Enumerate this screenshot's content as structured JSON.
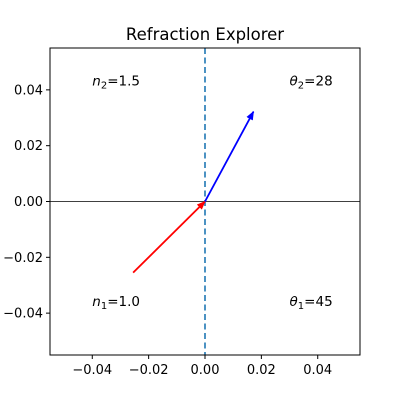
{
  "chart_data": {
    "type": "vector-diagram",
    "title": "Refraction Explorer",
    "xlim": [
      -0.055,
      0.055
    ],
    "ylim": [
      -0.055,
      0.055
    ],
    "xticks": [
      -0.04,
      -0.02,
      0.0,
      0.02,
      0.04
    ],
    "xtick_labels": [
      "−0.04",
      "−0.02",
      "0.00",
      "0.02",
      "0.04"
    ],
    "yticks": [
      -0.04,
      -0.02,
      0.0,
      0.02,
      0.04
    ],
    "ytick_labels": [
      "−0.04",
      "−0.02",
      "0.00",
      "0.02",
      "0.04"
    ],
    "grid": false,
    "reference_lines": [
      {
        "orientation": "horizontal",
        "value": 0.0,
        "style": "solid",
        "color": "#000000"
      },
      {
        "orientation": "vertical",
        "value": 0.0,
        "style": "dashed",
        "color": "#1f77b4"
      }
    ],
    "vectors": [
      {
        "from": [
          -0.0255,
          -0.0255
        ],
        "to": [
          0.0,
          0.0
        ],
        "color": "#ff0000"
      },
      {
        "from": [
          0.0,
          0.0
        ],
        "to": [
          0.0172,
          0.0322
        ],
        "color": "#0000ff"
      }
    ],
    "annotations": [
      {
        "symbol": "n",
        "subscript": "2",
        "text": "=1.5",
        "x": -0.04,
        "y": 0.0415
      },
      {
        "symbol": "θ",
        "subscript": "2",
        "text": "=28",
        "x": 0.03,
        "y": 0.0415
      },
      {
        "symbol": "n",
        "subscript": "1",
        "text": "=1.0",
        "x": -0.04,
        "y": -0.0375
      },
      {
        "symbol": "θ",
        "subscript": "1",
        "text": "=45",
        "x": 0.03,
        "y": -0.0375
      }
    ]
  }
}
